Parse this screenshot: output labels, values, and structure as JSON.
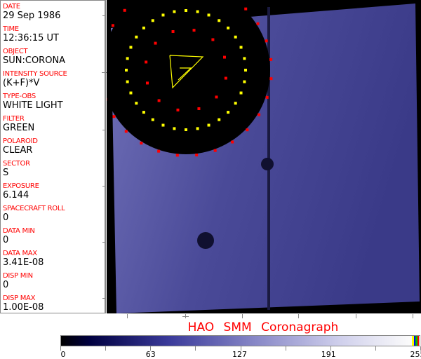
{
  "fields": [
    {
      "label": "DATE",
      "value": "29 Sep 1986"
    },
    {
      "label": "TIME",
      "value": "12:36:15 UT"
    },
    {
      "label": "OBJECT",
      "value": "SUN:CORONA"
    },
    {
      "label": "INTENSITY SOURCE",
      "value": "(K+F)*V"
    },
    {
      "label": "TYPE-OBS",
      "value": "WHITE LIGHT"
    },
    {
      "label": "FILTER",
      "value": "GREEN"
    },
    {
      "label": "POLAROID",
      "value": "CLEAR"
    },
    {
      "label": "SECTOR",
      "value": "S"
    },
    {
      "label": "EXPOSURE",
      "value": "6.144"
    },
    {
      "label": "SPACECRAFT ROLL",
      "value": "0"
    },
    {
      "label": "DATA MIN",
      "value": "0"
    },
    {
      "label": "DATA MAX",
      "value": "3.41E-08"
    },
    {
      "label": "DISP MIN",
      "value": "0"
    },
    {
      "label": "DISP MAX",
      "value": "1.00E-08"
    }
  ],
  "title": "HAO   SMM  Coronagraph",
  "colorbar": {
    "labels": [
      "0",
      "63",
      "127",
      "191",
      "255"
    ],
    "min": 0,
    "max": 255,
    "end_colors": [
      "#ffff00",
      "#0000ff",
      "#00c000",
      "#ff0000"
    ]
  },
  "colors": {
    "label": "#ff0000",
    "overlay_yellow": "#ffff00",
    "overlay_red": "#ff0000",
    "corona": "#5a5aa8"
  }
}
